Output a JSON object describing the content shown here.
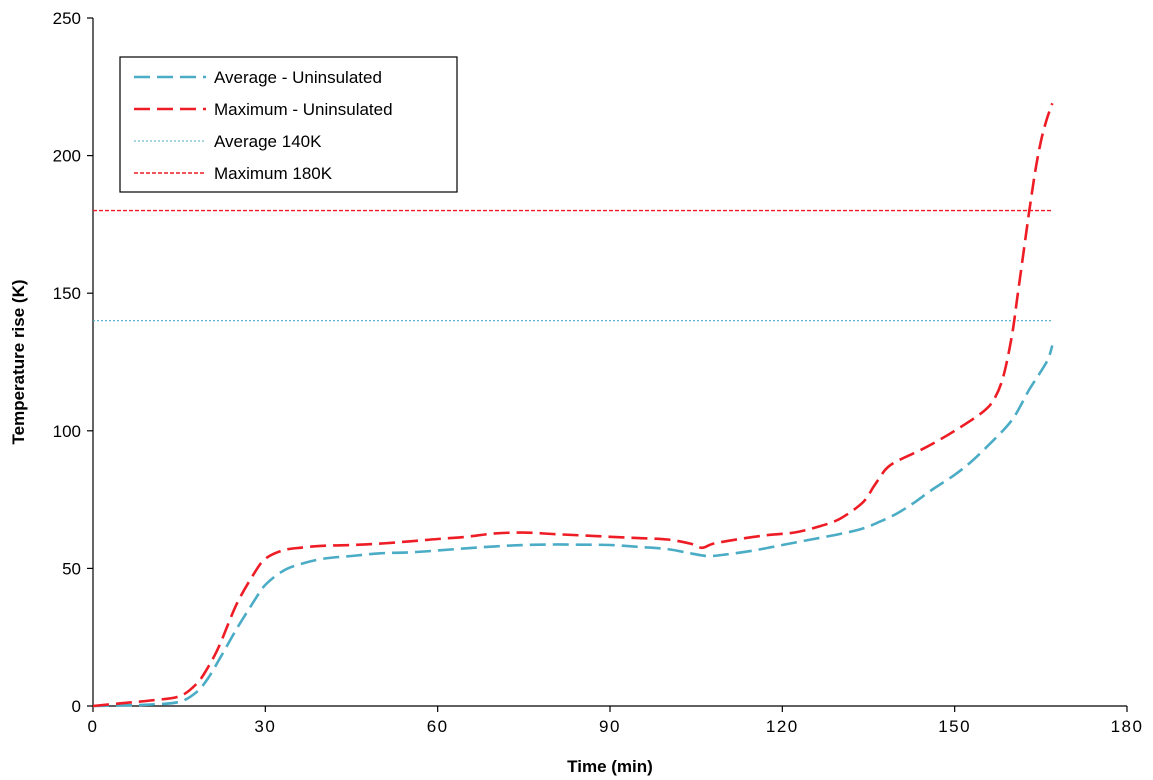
{
  "chart_data": {
    "type": "line",
    "title": "",
    "xlabel": "Time (min)",
    "ylabel": "Temperature rise (K)",
    "xlim": [
      0,
      180
    ],
    "ylim": [
      0,
      250
    ],
    "xticks": [
      0,
      30,
      60,
      90,
      120,
      150,
      180
    ],
    "yticks": [
      0,
      50,
      100,
      150,
      200,
      250
    ],
    "grid": false,
    "legend_position": "top-left",
    "series": [
      {
        "name": "Average - Uninsulated",
        "color": "#4bacc6",
        "style": "long-dash",
        "x": [
          0,
          5,
          10,
          15,
          18,
          20,
          22,
          25,
          28,
          30,
          33,
          36,
          40,
          45,
          50,
          55,
          60,
          65,
          70,
          75,
          80,
          85,
          90,
          95,
          100,
          104,
          107,
          110,
          115,
          120,
          125,
          130,
          134,
          137,
          140,
          143,
          146,
          150,
          153,
          156,
          160,
          163,
          166,
          167
        ],
        "y": [
          0,
          0.2,
          0.5,
          1.5,
          5,
          10,
          17,
          28,
          38,
          44,
          49,
          51.5,
          53.5,
          54.5,
          55.5,
          55.8,
          56.5,
          57.3,
          58,
          58.5,
          58.7,
          58.6,
          58.5,
          57.8,
          57,
          55.5,
          54.5,
          55,
          56.5,
          58.5,
          60.5,
          62.5,
          64.5,
          67,
          70,
          74,
          78.5,
          84,
          89,
          95,
          104,
          115,
          125,
          131
        ]
      },
      {
        "name": "Maximum - Uninsulated",
        "color": "#ee1c25",
        "style": "long-dash",
        "x": [
          0,
          5,
          10,
          15,
          18,
          20,
          22,
          25,
          28,
          30,
          33,
          36,
          40,
          45,
          50,
          55,
          60,
          65,
          70,
          75,
          80,
          85,
          90,
          95,
          100,
          104,
          106,
          108,
          112,
          117,
          122,
          126,
          130,
          134,
          136,
          138,
          140,
          145,
          150,
          155,
          157,
          158.5,
          160,
          161,
          162,
          163,
          164,
          165,
          166,
          167
        ],
        "y": [
          0,
          1,
          2,
          3.5,
          8,
          14,
          22,
          37,
          48,
          53.5,
          56.5,
          57.5,
          58.2,
          58.5,
          59,
          59.8,
          60.7,
          61.5,
          62.7,
          63,
          62.5,
          62,
          61.5,
          61,
          60.5,
          59,
          57.5,
          59,
          60.5,
          62,
          63,
          65,
          68,
          74,
          80,
          86,
          89,
          94,
          100,
          107,
          112,
          120,
          135,
          150,
          165,
          180,
          194,
          205,
          213,
          219
        ]
      },
      {
        "name": "Average 140K",
        "color": "#4bacc6",
        "style": "dotted",
        "x": [
          0,
          167
        ],
        "y": [
          140,
          140
        ]
      },
      {
        "name": "Maximum 180K",
        "color": "#ee1c25",
        "style": "short-dash",
        "x": [
          0,
          167
        ],
        "y": [
          180,
          180
        ]
      }
    ]
  }
}
